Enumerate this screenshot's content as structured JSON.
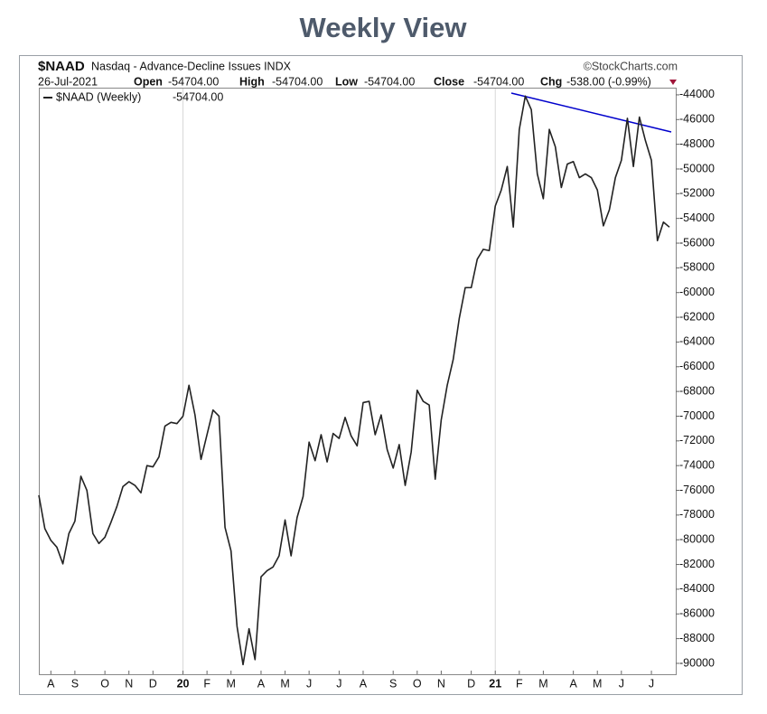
{
  "chart_data": {
    "type": "line",
    "title": "Weekly View",
    "symbol": "$NAAD",
    "description": "Nasdaq - Advance-Decline Issues INDX",
    "source": "©StockCharts.com",
    "date": "26-Jul-2021",
    "quote": [
      {
        "label": "Open",
        "value": "-54704.00"
      },
      {
        "label": "High",
        "value": "-54704.00"
      },
      {
        "label": "Low",
        "value": "-54704.00"
      },
      {
        "label": "Close",
        "value": "-54704.00"
      },
      {
        "label": "Chg",
        "value": "-538.00 (-0.99%)"
      }
    ],
    "categories": [
      null,
      null,
      "A",
      null,
      null,
      null,
      "S",
      null,
      null,
      null,
      null,
      "O",
      null,
      null,
      null,
      "N",
      null,
      null,
      null,
      "D",
      null,
      null,
      null,
      null,
      "20",
      null,
      null,
      null,
      "F",
      null,
      null,
      null,
      "M",
      null,
      null,
      null,
      null,
      "A",
      null,
      null,
      null,
      "M",
      null,
      null,
      null,
      "J",
      null,
      null,
      null,
      null,
      "J",
      null,
      null,
      null,
      "A",
      null,
      null,
      null,
      null,
      "S",
      null,
      null,
      null,
      "O",
      null,
      null,
      null,
      "N",
      null,
      null,
      null,
      null,
      "D",
      null,
      null,
      null,
      "21",
      null,
      null,
      null,
      "F",
      null,
      null,
      null,
      "M",
      null,
      null,
      null,
      null,
      "A",
      null,
      null,
      null,
      "M",
      null,
      null,
      null,
      "J",
      null,
      null,
      null,
      null,
      "J",
      null,
      null,
      null
    ],
    "series": [
      {
        "name": "$NAAD (Weekly)",
        "last": "-54704.00",
        "color": "#222222",
        "values": [
          -76400,
          -79100,
          -80050,
          -80600,
          -81950,
          -79500,
          -78500,
          -74860,
          -76000,
          -79500,
          -80300,
          -79800,
          -78600,
          -77300,
          -75700,
          -75300,
          -75600,
          -76200,
          -74000,
          -74100,
          -73300,
          -70800,
          -70500,
          -70600,
          -70000,
          -67500,
          -69900,
          -73500,
          -71500,
          -69500,
          -70000,
          -79000,
          -80900,
          -87000,
          -90100,
          -87200,
          -89700,
          -83000,
          -82500,
          -82200,
          -81300,
          -78400,
          -81300,
          -78200,
          -76500,
          -72100,
          -73600,
          -71500,
          -73700,
          -71400,
          -71800,
          -70100,
          -71600,
          -72400,
          -68900,
          -68800,
          -71500,
          -69900,
          -72700,
          -74200,
          -72300,
          -75600,
          -72900,
          -67900,
          -68800,
          -69100,
          -75100,
          -70300,
          -67500,
          -65400,
          -62100,
          -59600,
          -59600,
          -57300,
          -56500,
          -56600,
          -53000,
          -51700,
          -49800,
          -54700,
          -46800,
          -44100,
          -45200,
          -50400,
          -52400,
          -46800,
          -48200,
          -51500,
          -49600,
          -49400,
          -50700,
          -50400,
          -50700,
          -51700,
          -54600,
          -53300,
          -50700,
          -49300,
          -45900,
          -49800,
          -45800,
          -47700,
          -49300,
          -55800,
          -54300,
          -54704
        ]
      }
    ],
    "ylim": [
      -90880,
      -43420
    ],
    "yticks": [
      -44000,
      -46000,
      -48000,
      -50000,
      -52000,
      -54000,
      -56000,
      -58000,
      -60000,
      -62000,
      -64000,
      -66000,
      -68000,
      -70000,
      -72000,
      -74000,
      -76000,
      -78000,
      -80000,
      -82000,
      -84000,
      -86000,
      -88000,
      -90000
    ]
  }
}
